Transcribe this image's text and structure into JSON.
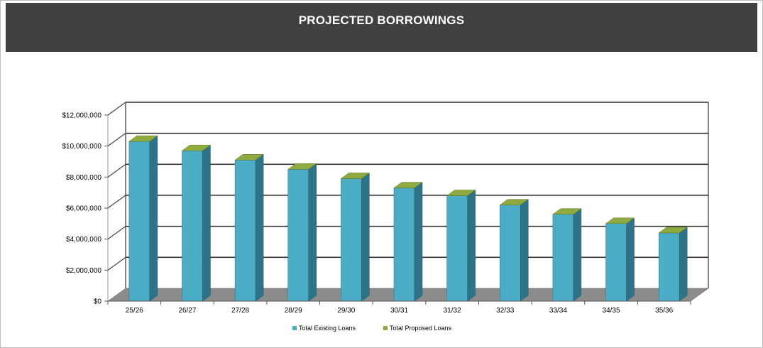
{
  "chart_data": {
    "type": "bar",
    "title": "PROJECTED BORROWINGS",
    "categories": [
      "25/26",
      "26/27",
      "27/28",
      "28/29",
      "29/30",
      "30/31",
      "31/32",
      "32/33",
      "33/34",
      "34/35",
      "35/36"
    ],
    "series": [
      {
        "name": "Total Existing Loans",
        "values": [
          10300000,
          9700000,
          9100000,
          8500000,
          7900000,
          7300000,
          6800000,
          6200000,
          5600000,
          5000000,
          4400000
        ]
      },
      {
        "name": "Total Proposed Loans",
        "values": [
          0,
          0,
          0,
          0,
          0,
          0,
          0,
          0,
          0,
          0,
          0
        ]
      }
    ],
    "stacked": true,
    "yticks": [
      "$0",
      "$2,000,000",
      "$4,000,000",
      "$6,000,000",
      "$8,000,000",
      "$10,000,000",
      "$12,000,000"
    ],
    "ylim": [
      0,
      12000000
    ],
    "grid": true,
    "legend": "bottom",
    "colors": {
      "existing": "#4bacc6",
      "proposed": "#8faa3e",
      "floor": "#8c8c8c",
      "title_bar": "#404040"
    }
  }
}
